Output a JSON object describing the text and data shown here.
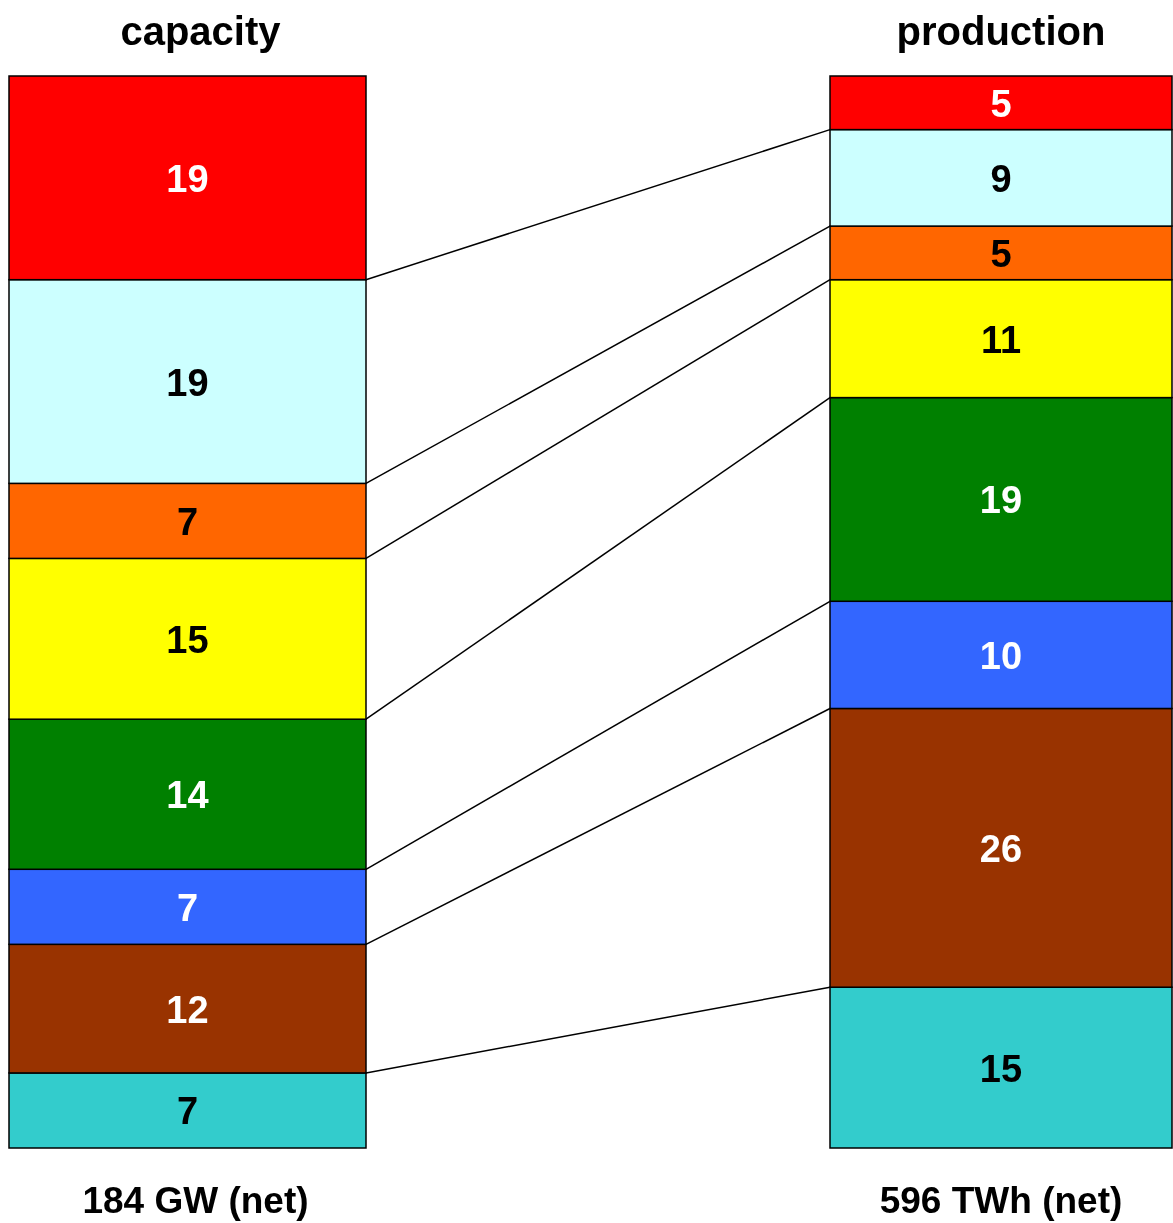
{
  "chart_data": {
    "type": "bar",
    "stacked": true,
    "data_labels": true,
    "categories": [
      "capacity",
      "production"
    ],
    "series": [
      {
        "color": "#33cccc",
        "values": [
          7,
          15
        ]
      },
      {
        "color": "#993300",
        "values": [
          12,
          26
        ]
      },
      {
        "color": "#3366ff",
        "values": [
          7,
          10
        ]
      },
      {
        "color": "#008000",
        "values": [
          14,
          19
        ]
      },
      {
        "color": "#ffff00",
        "values": [
          15,
          11
        ]
      },
      {
        "color": "#ff6600",
        "values": [
          7,
          5
        ]
      },
      {
        "color": "#ccffff",
        "values": [
          19,
          9
        ]
      },
      {
        "color": "#ff0000",
        "values": [
          19,
          5
        ]
      }
    ],
    "annotations": [
      "184 GW (net)",
      "596 TWh (net)"
    ]
  }
}
